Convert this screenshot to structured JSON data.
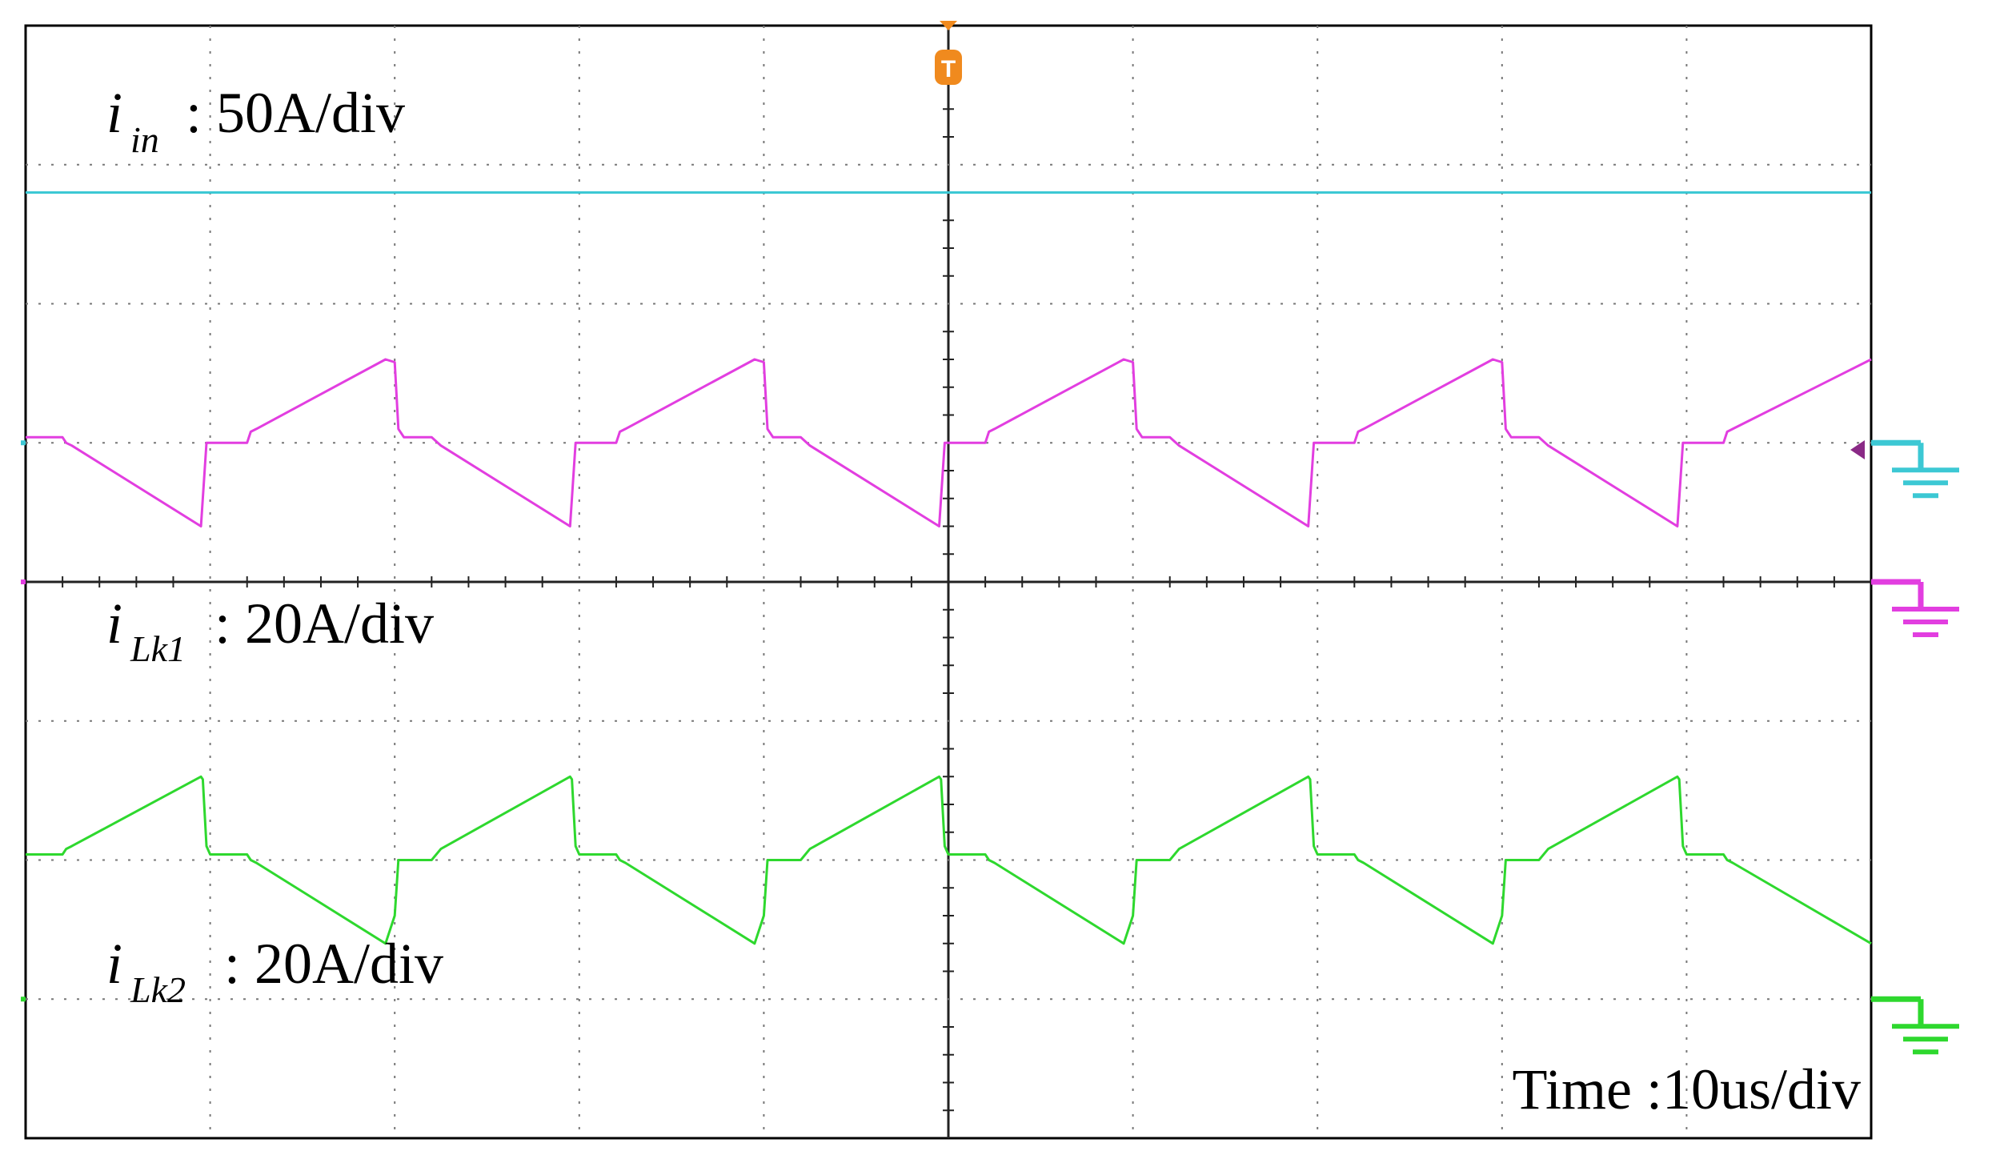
{
  "chart_data": {
    "type": "line",
    "title": "",
    "xlabel": "Time :10us/div",
    "grid": true,
    "divisions": {
      "x": 10,
      "y": 8
    },
    "trigger_marker": "T",
    "channel_labels": [
      {
        "sym": "i",
        "sub": "in",
        "scale": ": 50A/div"
      },
      {
        "sym": "i",
        "sub": "Lk1",
        "scale": ": 20A/div"
      },
      {
        "sym": "i",
        "sub": "Lk2",
        "scale": ": 20A/div"
      }
    ],
    "x_units": "div",
    "y_units": "div",
    "series": [
      {
        "name": "i_in",
        "color": "#3cc8d4",
        "ground_div": 5.0,
        "x": [
          0,
          10
        ],
        "y": [
          6.8,
          6.8
        ]
      },
      {
        "name": "i_Lk1",
        "color": "#e23ee0",
        "ground_div": 4.0,
        "x": [
          0,
          0.2,
          0.22,
          0.25,
          0.95,
          0.96,
          0.98,
          1.0,
          1.2,
          1.22,
          1.25,
          1.95,
          2.0,
          2.02,
          2.05,
          2.2,
          2.25,
          2.95,
          2.96,
          2.98,
          3.0,
          3.2,
          3.22,
          3.25,
          3.95,
          4.0,
          4.02,
          4.05,
          4.2,
          4.25,
          4.95,
          4.96,
          4.98,
          5.0,
          5.2,
          5.22,
          5.25,
          5.95,
          6.0,
          6.02,
          6.05,
          6.2,
          6.25,
          6.95,
          6.96,
          6.98,
          7.0,
          7.2,
          7.22,
          7.25,
          7.95,
          8.0,
          8.02,
          8.05,
          8.2,
          8.25,
          8.95,
          8.96,
          8.98,
          9.0,
          9.2,
          9.22,
          9.25,
          10.0
        ],
        "y": [
          5.04,
          5.04,
          5.0,
          4.98,
          4.4,
          4.6,
          5.0,
          5.0,
          5.0,
          5.08,
          5.1,
          5.6,
          5.58,
          5.1,
          5.04,
          5.04,
          4.98,
          4.4,
          4.6,
          5.0,
          5.0,
          5.0,
          5.08,
          5.1,
          5.6,
          5.58,
          5.1,
          5.04,
          5.04,
          4.98,
          4.4,
          4.6,
          5.0,
          5.0,
          5.0,
          5.08,
          5.1,
          5.6,
          5.58,
          5.1,
          5.04,
          5.04,
          4.98,
          4.4,
          4.6,
          5.0,
          5.0,
          5.0,
          5.08,
          5.1,
          5.6,
          5.58,
          5.1,
          5.04,
          5.04,
          4.98,
          4.4,
          4.6,
          5.0,
          5.0,
          5.0,
          5.08,
          5.1,
          5.6
        ]
      },
      {
        "name": "i_Lk2",
        "color": "#2ed82e",
        "ground_div": 1.0,
        "x": [
          0,
          0.2,
          0.22,
          0.25,
          0.95,
          0.96,
          0.98,
          1.0,
          1.2,
          1.22,
          1.25,
          1.95,
          2.0,
          2.02,
          2.05,
          2.2,
          2.25,
          2.95,
          2.96,
          2.98,
          3.0,
          3.2,
          3.22,
          3.25,
          3.95,
          4.0,
          4.02,
          4.05,
          4.2,
          4.25,
          4.95,
          4.96,
          4.98,
          5.0,
          5.2,
          5.22,
          5.25,
          5.95,
          6.0,
          6.02,
          6.05,
          6.2,
          6.25,
          6.95,
          6.96,
          6.98,
          7.0,
          7.2,
          7.22,
          7.25,
          7.95,
          8.0,
          8.02,
          8.05,
          8.2,
          8.25,
          8.95,
          8.96,
          8.98,
          9.0,
          9.2,
          9.22,
          9.25,
          10.0
        ],
        "y": [
          2.04,
          2.04,
          2.08,
          2.1,
          2.6,
          2.58,
          2.1,
          2.04,
          2.04,
          2.0,
          1.98,
          1.4,
          1.6,
          2.0,
          2.0,
          2.0,
          2.08,
          2.6,
          2.58,
          2.1,
          2.04,
          2.04,
          2.0,
          1.98,
          1.4,
          1.6,
          2.0,
          2.0,
          2.0,
          2.08,
          2.6,
          2.58,
          2.1,
          2.04,
          2.04,
          2.0,
          1.98,
          1.4,
          1.6,
          2.0,
          2.0,
          2.0,
          2.08,
          2.6,
          2.58,
          2.1,
          2.04,
          2.04,
          2.0,
          1.98,
          1.4,
          1.6,
          2.0,
          2.0,
          2.0,
          2.08,
          2.6,
          2.58,
          2.1,
          2.04,
          2.04,
          2.0,
          1.98,
          1.4
        ]
      }
    ]
  }
}
